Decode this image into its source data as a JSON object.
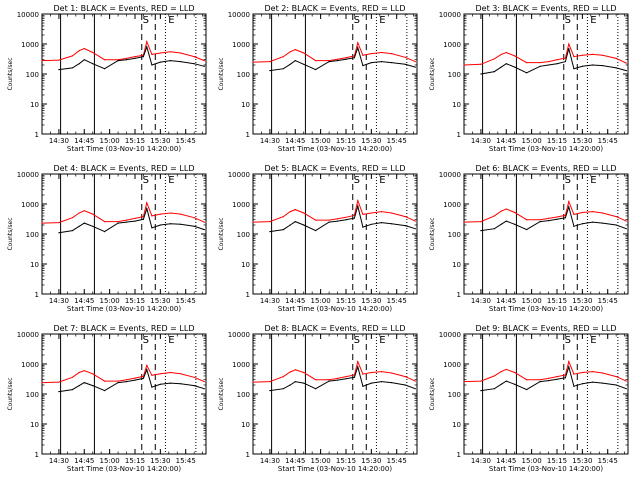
{
  "colors": {
    "events": "#000000",
    "lld": "#ff0000",
    "background": "#ffffff",
    "axes": "#000000"
  },
  "common": {
    "xlabel": "Start Time (03-Nov-10 14:20:00)",
    "ylabel": "Counts/sec",
    "y_ticks": [
      "1",
      "10",
      "100",
      "1000",
      "10000"
    ],
    "x_ticks": [
      "14:30",
      "14:45",
      "15:00",
      "15:15",
      "15:30",
      "15:45"
    ],
    "markers": [
      "S",
      "E"
    ]
  },
  "chart_data": [
    {
      "type": "line",
      "title": "Det 1: BLACK = Events, RED = LLD",
      "xlabel": "Start Time (03-Nov-10 14:20:00)",
      "ylabel": "Counts/sec",
      "yscale": "log",
      "ylim": [
        1,
        10000
      ],
      "xlim": [
        "14:20",
        "15:57"
      ],
      "x_ticks": [
        "14:30",
        "14:45",
        "15:00",
        "15:15",
        "15:30",
        "15:45"
      ],
      "x": [
        "14:20",
        "14:30",
        "14:38",
        "14:42",
        "14:45",
        "14:50",
        "14:57",
        "15:05",
        "15:10",
        "15:15",
        "15:20",
        "15:22",
        "15:25",
        "15:30",
        "15:36",
        "15:42",
        "15:50",
        "15:56"
      ],
      "series": [
        {
          "name": "LLD",
          "values": [
            280,
            290,
            400,
            600,
            700,
            520,
            300,
            300,
            330,
            380,
            420,
            1200,
            450,
            500,
            550,
            500,
            380,
            280
          ]
        },
        {
          "name": "Events",
          "values": [
            null,
            140,
            160,
            220,
            300,
            220,
            150,
            280,
            300,
            330,
            380,
            800,
            200,
            250,
            280,
            260,
            220,
            180
          ]
        }
      ],
      "solid_lines": [
        "14:31",
        "14:51"
      ],
      "dashed_lines": [
        "15:19",
        "15:27"
      ],
      "dotted_lines": [
        "15:33",
        "15:51"
      ]
    },
    {
      "type": "line",
      "title": "Det 2: BLACK = Events, RED = LLD",
      "xlabel": "Start Time (03-Nov-10 14:20:00)",
      "ylabel": "Counts/sec",
      "yscale": "log",
      "ylim": [
        1,
        10000
      ],
      "xlim": [
        "14:20",
        "15:57"
      ],
      "x_ticks": [
        "14:30",
        "14:45",
        "15:00",
        "15:15",
        "15:30",
        "15:45"
      ],
      "x": [
        "14:20",
        "14:30",
        "14:38",
        "14:42",
        "14:45",
        "14:50",
        "14:57",
        "15:05",
        "15:10",
        "15:15",
        "15:20",
        "15:22",
        "15:25",
        "15:30",
        "15:36",
        "15:42",
        "15:50",
        "15:56"
      ],
      "series": [
        {
          "name": "LLD",
          "values": [
            250,
            260,
            380,
            550,
            650,
            500,
            280,
            280,
            310,
            350,
            400,
            1100,
            420,
            480,
            520,
            480,
            360,
            260
          ]
        },
        {
          "name": "Events",
          "values": [
            null,
            130,
            150,
            210,
            280,
            210,
            140,
            260,
            280,
            310,
            350,
            750,
            190,
            240,
            260,
            240,
            210,
            170
          ]
        }
      ],
      "solid_lines": [
        "14:31",
        "14:51"
      ],
      "dashed_lines": [
        "15:19",
        "15:27"
      ],
      "dotted_lines": [
        "15:33",
        "15:51"
      ]
    },
    {
      "type": "line",
      "title": "Det 3: BLACK = Events, RED = LLD",
      "xlabel": "Start Time (03-Nov-10 14:20:00)",
      "ylabel": "Counts/sec",
      "yscale": "log",
      "ylim": [
        1,
        10000
      ],
      "xlim": [
        "14:20",
        "15:57"
      ],
      "x_ticks": [
        "14:30",
        "14:45",
        "15:00",
        "15:15",
        "15:30",
        "15:45"
      ],
      "x": [
        "14:20",
        "14:30",
        "14:38",
        "14:42",
        "14:45",
        "14:50",
        "14:57",
        "15:05",
        "15:10",
        "15:15",
        "15:20",
        "15:22",
        "15:25",
        "15:30",
        "15:36",
        "15:42",
        "15:50",
        "15:56"
      ],
      "series": [
        {
          "name": "LLD",
          "values": [
            200,
            210,
            320,
            450,
            520,
            400,
            240,
            240,
            260,
            300,
            340,
            1000,
            380,
            420,
            450,
            420,
            330,
            230
          ]
        },
        {
          "name": "Events",
          "values": [
            null,
            100,
            120,
            170,
            220,
            170,
            110,
            180,
            200,
            220,
            260,
            700,
            150,
            180,
            200,
            190,
            160,
            130
          ]
        }
      ],
      "solid_lines": [
        "14:31",
        "14:51"
      ],
      "dashed_lines": [
        "15:19",
        "15:27"
      ],
      "dotted_lines": [
        "15:33",
        "15:51"
      ]
    },
    {
      "type": "line",
      "title": "Det 4: BLACK = Events, RED = LLD",
      "xlabel": "Start Time (03-Nov-10 14:20:00)",
      "ylabel": "Counts/sec",
      "yscale": "log",
      "ylim": [
        1,
        10000
      ],
      "xlim": [
        "14:20",
        "15:57"
      ],
      "x_ticks": [
        "14:30",
        "14:45",
        "15:00",
        "15:15",
        "15:30",
        "15:45"
      ],
      "x": [
        "14:20",
        "14:30",
        "14:38",
        "14:42",
        "14:45",
        "14:50",
        "14:57",
        "15:05",
        "15:10",
        "15:15",
        "15:20",
        "15:22",
        "15:25",
        "15:30",
        "15:36",
        "15:42",
        "15:50",
        "15:56"
      ],
      "series": [
        {
          "name": "LLD",
          "values": [
            230,
            240,
            350,
            500,
            600,
            460,
            260,
            260,
            290,
            330,
            380,
            1100,
            400,
            460,
            500,
            460,
            350,
            250
          ]
        },
        {
          "name": "Events",
          "values": [
            null,
            110,
            130,
            180,
            230,
            180,
            120,
            230,
            250,
            270,
            310,
            700,
            160,
            200,
            220,
            210,
            180,
            140
          ]
        }
      ],
      "solid_lines": [
        "14:31",
        "14:51"
      ],
      "dashed_lines": [
        "15:19",
        "15:27"
      ],
      "dotted_lines": [
        "15:33",
        "15:51"
      ]
    },
    {
      "type": "line",
      "title": "Det 5: BLACK = Events, RED = LLD",
      "xlabel": "Start Time (03-Nov-10 14:20:00)",
      "ylabel": "Counts/sec",
      "yscale": "log",
      "ylim": [
        1,
        10000
      ],
      "xlim": [
        "14:20",
        "15:57"
      ],
      "x_ticks": [
        "14:30",
        "14:45",
        "15:00",
        "15:15",
        "15:30",
        "15:45"
      ],
      "x": [
        "14:20",
        "14:30",
        "14:38",
        "14:42",
        "14:45",
        "14:50",
        "14:57",
        "15:05",
        "15:10",
        "15:15",
        "15:20",
        "15:22",
        "15:25",
        "15:30",
        "15:36",
        "15:42",
        "15:50",
        "15:56"
      ],
      "series": [
        {
          "name": "LLD",
          "values": [
            250,
            260,
            380,
            560,
            650,
            500,
            290,
            290,
            320,
            360,
            420,
            1300,
            450,
            500,
            560,
            500,
            380,
            270
          ]
        },
        {
          "name": "Events",
          "values": [
            null,
            120,
            140,
            200,
            260,
            200,
            130,
            250,
            270,
            300,
            340,
            850,
            170,
            210,
            240,
            220,
            190,
            150
          ]
        }
      ],
      "solid_lines": [
        "14:31",
        "14:51"
      ],
      "dashed_lines": [
        "15:19",
        "15:27"
      ],
      "dotted_lines": [
        "15:33",
        "15:51"
      ]
    },
    {
      "type": "line",
      "title": "Det 6: BLACK = Events, RED = LLD",
      "xlabel": "Start Time (03-Nov-10 14:20:00)",
      "ylabel": "Counts/sec",
      "yscale": "log",
      "ylim": [
        1,
        10000
      ],
      "xlim": [
        "14:20",
        "15:57"
      ],
      "x_ticks": [
        "14:30",
        "14:45",
        "15:00",
        "15:15",
        "15:30",
        "15:45"
      ],
      "x": [
        "14:20",
        "14:30",
        "14:38",
        "14:42",
        "14:45",
        "14:50",
        "14:57",
        "15:05",
        "15:10",
        "15:15",
        "15:20",
        "15:22",
        "15:25",
        "15:30",
        "15:36",
        "15:42",
        "15:50",
        "15:56"
      ],
      "series": [
        {
          "name": "LLD",
          "values": [
            250,
            260,
            400,
            580,
            680,
            520,
            300,
            300,
            330,
            370,
            420,
            1200,
            450,
            520,
            560,
            500,
            380,
            270
          ]
        },
        {
          "name": "Events",
          "values": [
            null,
            130,
            150,
            210,
            270,
            210,
            140,
            260,
            280,
            310,
            350,
            800,
            180,
            220,
            250,
            230,
            200,
            150
          ]
        }
      ],
      "solid_lines": [
        "14:31",
        "14:51"
      ],
      "dashed_lines": [
        "15:19",
        "15:27"
      ],
      "dotted_lines": [
        "15:33",
        "15:51"
      ]
    },
    {
      "type": "line",
      "title": "Det 7: BLACK = Events, RED = LLD",
      "xlabel": "Start Time (03-Nov-10 14:20:00)",
      "ylabel": "Counts/sec",
      "yscale": "log",
      "ylim": [
        1,
        10000
      ],
      "xlim": [
        "14:20",
        "15:57"
      ],
      "x_ticks": [
        "14:30",
        "14:45",
        "15:00",
        "15:15",
        "15:30",
        "15:45"
      ],
      "x": [
        "14:20",
        "14:30",
        "14:38",
        "14:42",
        "14:45",
        "14:50",
        "14:57",
        "15:05",
        "15:10",
        "15:15",
        "15:20",
        "15:22",
        "15:25",
        "15:30",
        "15:36",
        "15:42",
        "15:50",
        "15:56"
      ],
      "series": [
        {
          "name": "LLD",
          "values": [
            240,
            250,
            360,
            520,
            600,
            470,
            270,
            270,
            300,
            340,
            390,
            900,
            420,
            470,
            520,
            470,
            360,
            260
          ]
        },
        {
          "name": "Events",
          "values": [
            null,
            120,
            140,
            190,
            240,
            190,
            130,
            240,
            260,
            290,
            330,
            650,
            170,
            210,
            230,
            220,
            190,
            150
          ]
        }
      ],
      "solid_lines": [
        "14:31",
        "14:51"
      ],
      "dashed_lines": [
        "15:19",
        "15:27"
      ],
      "dotted_lines": [
        "15:33",
        "15:51"
      ]
    },
    {
      "type": "line",
      "title": "Det 8: BLACK = Events, RED = LLD",
      "xlabel": "Start Time (03-Nov-10 14:20:00)",
      "ylabel": "Counts/sec",
      "yscale": "log",
      "ylim": [
        1,
        10000
      ],
      "xlim": [
        "14:20",
        "15:57"
      ],
      "x_ticks": [
        "14:30",
        "14:45",
        "15:00",
        "15:15",
        "15:30",
        "15:45"
      ],
      "x": [
        "14:20",
        "14:30",
        "14:38",
        "14:42",
        "14:45",
        "14:50",
        "14:57",
        "15:05",
        "15:10",
        "15:15",
        "15:20",
        "15:22",
        "15:25",
        "15:30",
        "15:36",
        "15:42",
        "15:50",
        "15:56"
      ],
      "series": [
        {
          "name": "LLD",
          "values": [
            250,
            260,
            380,
            540,
            640,
            520,
            300,
            300,
            330,
            380,
            430,
            1200,
            460,
            520,
            560,
            500,
            380,
            270
          ]
        },
        {
          "name": "Events",
          "values": [
            null,
            130,
            150,
            200,
            260,
            230,
            150,
            270,
            290,
            320,
            360,
            800,
            180,
            230,
            260,
            240,
            200,
            150
          ]
        }
      ],
      "solid_lines": [
        "14:31",
        "14:51"
      ],
      "dashed_lines": [
        "15:19",
        "15:27"
      ],
      "dotted_lines": [
        "15:33",
        "15:51"
      ]
    },
    {
      "type": "line",
      "title": "Det 9: BLACK = Events, RED = LLD",
      "xlabel": "Start Time (03-Nov-10 14:20:00)",
      "ylabel": "Counts/sec",
      "yscale": "log",
      "ylim": [
        1,
        10000
      ],
      "xlim": [
        "14:20",
        "15:57"
      ],
      "x_ticks": [
        "14:30",
        "14:45",
        "15:00",
        "15:15",
        "15:30",
        "15:45"
      ],
      "x": [
        "14:20",
        "14:30",
        "14:38",
        "14:42",
        "14:45",
        "14:50",
        "14:57",
        "15:05",
        "15:10",
        "15:15",
        "15:20",
        "15:22",
        "15:25",
        "15:30",
        "15:36",
        "15:42",
        "15:50",
        "15:56"
      ],
      "series": [
        {
          "name": "LLD",
          "values": [
            260,
            270,
            400,
            560,
            660,
            520,
            300,
            300,
            330,
            380,
            430,
            1200,
            460,
            520,
            560,
            500,
            380,
            270
          ]
        },
        {
          "name": "Events",
          "values": [
            null,
            130,
            150,
            210,
            270,
            210,
            140,
            260,
            280,
            310,
            350,
            800,
            180,
            220,
            250,
            230,
            200,
            150
          ]
        }
      ],
      "solid_lines": [
        "14:31",
        "14:51"
      ],
      "dashed_lines": [
        "15:19",
        "15:27"
      ],
      "dotted_lines": [
        "15:33",
        "15:51"
      ]
    }
  ]
}
